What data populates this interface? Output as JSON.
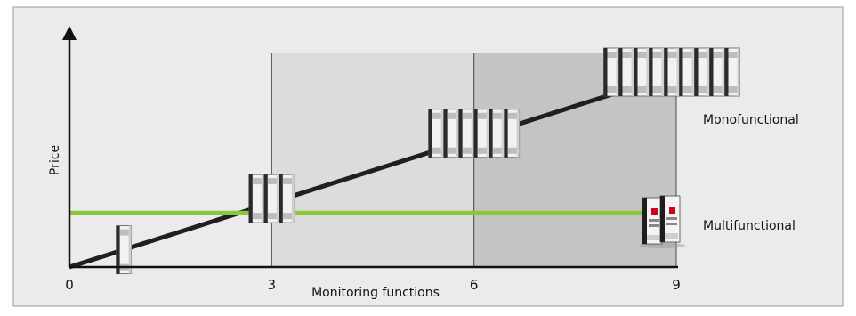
{
  "chart_data": {
    "type": "line",
    "xlabel": "Monitoring functions",
    "ylabel": "Price",
    "xlim": [
      0,
      9
    ],
    "x_ticks": [
      "0",
      "3",
      "6",
      "9"
    ],
    "shaded_regions": [
      {
        "x": [
          3,
          6
        ],
        "color": "#dcdcdc"
      },
      {
        "x": [
          6,
          9
        ],
        "color": "#c4c4c4"
      }
    ],
    "series": [
      {
        "name": "Monofunctional",
        "color": "#1f1f1f",
        "x": [
          0,
          9
        ],
        "y": [
          0,
          1
        ]
      },
      {
        "name": "Multifunctional",
        "color": "#8cc63f",
        "x": [
          0,
          9
        ],
        "y": [
          0.28,
          0.28
        ]
      }
    ],
    "device_groups": [
      {
        "x": 0.8,
        "y": 0.08,
        "count": 1
      },
      {
        "x": 3,
        "y": 0.345,
        "count": 3
      },
      {
        "x": 6,
        "y": 0.683,
        "count": 6
      },
      {
        "x": 9,
        "y": 1.0,
        "count": 9
      }
    ],
    "colors": {
      "background": "#ebebeb",
      "border": "#999999",
      "axis": "#111111",
      "gridline": "#444444"
    },
    "icons": [
      "relay-module-icon",
      "multifunction-relay-icon"
    ]
  }
}
